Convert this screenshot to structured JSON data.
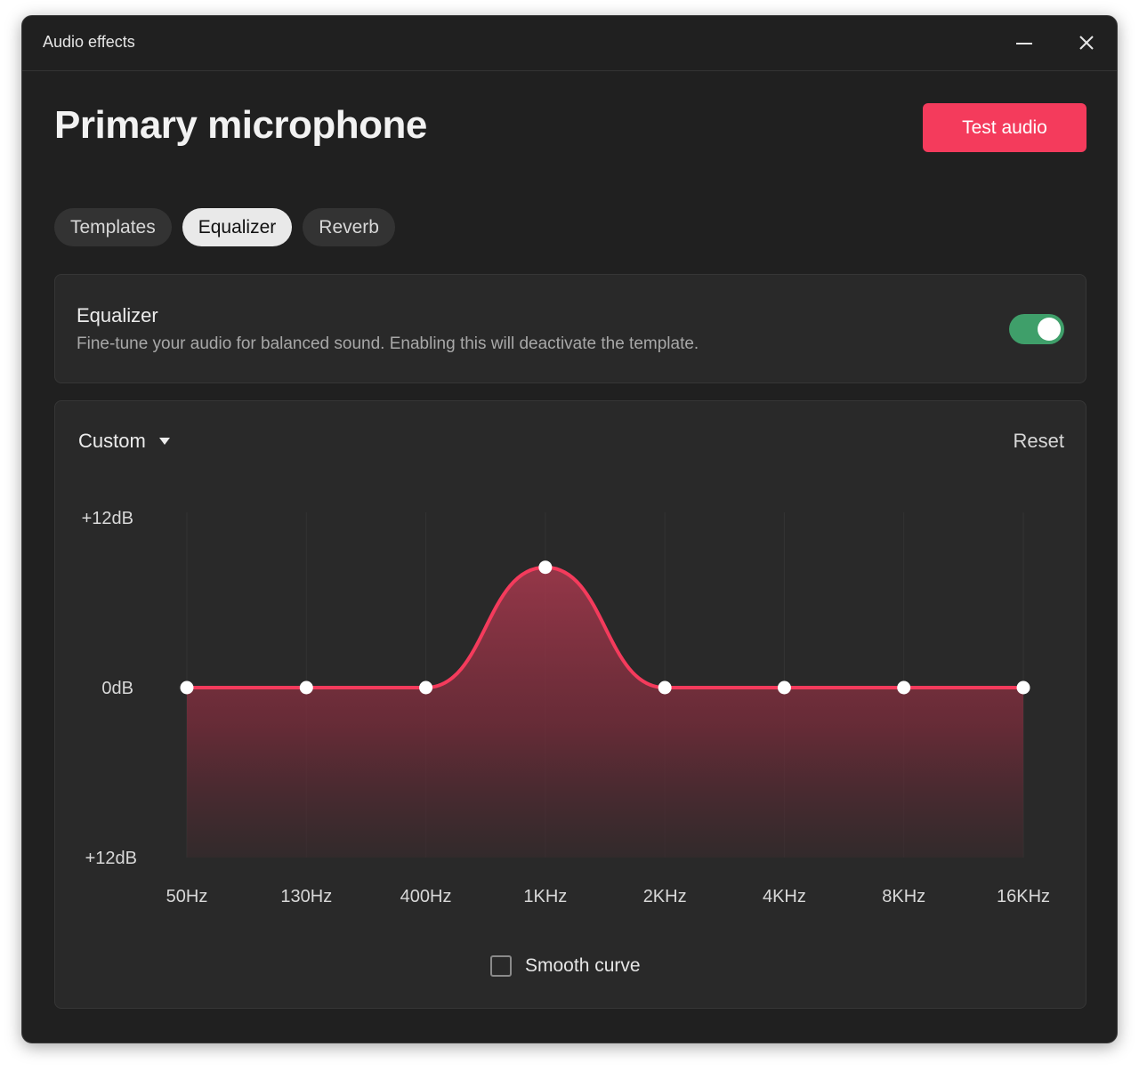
{
  "window": {
    "title": "Audio effects",
    "minimize_icon": "minimize-icon",
    "close_icon": "close-icon"
  },
  "header": {
    "title": "Primary microphone",
    "test_button": "Test audio",
    "test_button_color": "#f43b5c"
  },
  "tabs": [
    {
      "label": "Templates",
      "active": false
    },
    {
      "label": "Equalizer",
      "active": true
    },
    {
      "label": "Reverb",
      "active": false
    }
  ],
  "equalizer_card": {
    "title": "Equalizer",
    "description": "Fine-tune your audio for balanced sound. Enabling this will deactivate the template.",
    "enabled": true,
    "toggle_color": "#3f9f6a"
  },
  "eq_panel": {
    "preset": "Custom",
    "preset_icon": "caret-down-icon",
    "reset": "Reset",
    "smooth_curve_label": "Smooth curve",
    "smooth_curve_checked": false
  },
  "chart_data": {
    "type": "area",
    "categories": [
      "50Hz",
      "130Hz",
      "400Hz",
      "1KHz",
      "2KHz",
      "4KHz",
      "8KHz",
      "16KHz"
    ],
    "series": [
      {
        "values": [
          0,
          0,
          0,
          8.5,
          0,
          0,
          0,
          0
        ]
      }
    ],
    "y_tick_labels": [
      "+12dB",
      "0dB",
      "+12dB"
    ],
    "ylim": [
      -12,
      12
    ],
    "line_color": "#f43b5c",
    "grid": true
  }
}
